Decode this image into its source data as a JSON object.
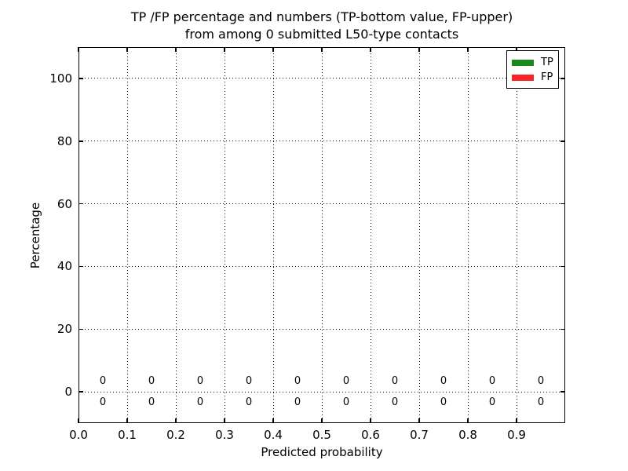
{
  "title": {
    "line1": "TP /FP percentage and numbers (TP-bottom value, FP-upper)",
    "line2": "from among 0 submitted L50-type contacts"
  },
  "chart_data": {
    "type": "bar",
    "title": "TP /FP percentage and numbers (TP-bottom value, FP-upper)\nfrom among 0 submitted L50-type contacts",
    "xlabel": "Predicted probability",
    "ylabel": "Percentage",
    "xlim": [
      0.0,
      1.0
    ],
    "ylim": [
      -10,
      110
    ],
    "xticks": [
      0.0,
      0.1,
      0.2,
      0.3,
      0.4,
      0.5,
      0.6,
      0.7,
      0.8,
      0.9
    ],
    "xtick_labels": [
      "0.0",
      "0.1",
      "0.2",
      "0.3",
      "0.4",
      "0.5",
      "0.6",
      "0.7",
      "0.8",
      "0.9"
    ],
    "yticks": [
      0,
      20,
      40,
      60,
      80,
      100
    ],
    "ytick_labels": [
      "0",
      "20",
      "40",
      "60",
      "80",
      "100"
    ],
    "grid": {
      "style": "dotted",
      "color": "#000000",
      "on": true
    },
    "background": "#ffffff",
    "bar_centers": [
      0.05,
      0.15,
      0.25,
      0.35,
      0.45,
      0.55,
      0.65,
      0.75,
      0.85,
      0.95
    ],
    "series": [
      {
        "name": "TP",
        "color": "#1a8a1a",
        "values": [
          0,
          0,
          0,
          0,
          0,
          0,
          0,
          0,
          0,
          0
        ],
        "count_label_row": "bottom"
      },
      {
        "name": "FP",
        "color": "#f92525",
        "values": [
          0,
          0,
          0,
          0,
          0,
          0,
          0,
          0,
          0,
          0
        ],
        "count_label_row": "upper"
      }
    ],
    "legend": {
      "position": "upper-right",
      "entries": [
        {
          "label": "TP",
          "color": "#1a8a1a"
        },
        {
          "label": "FP",
          "color": "#f92525"
        }
      ]
    }
  }
}
